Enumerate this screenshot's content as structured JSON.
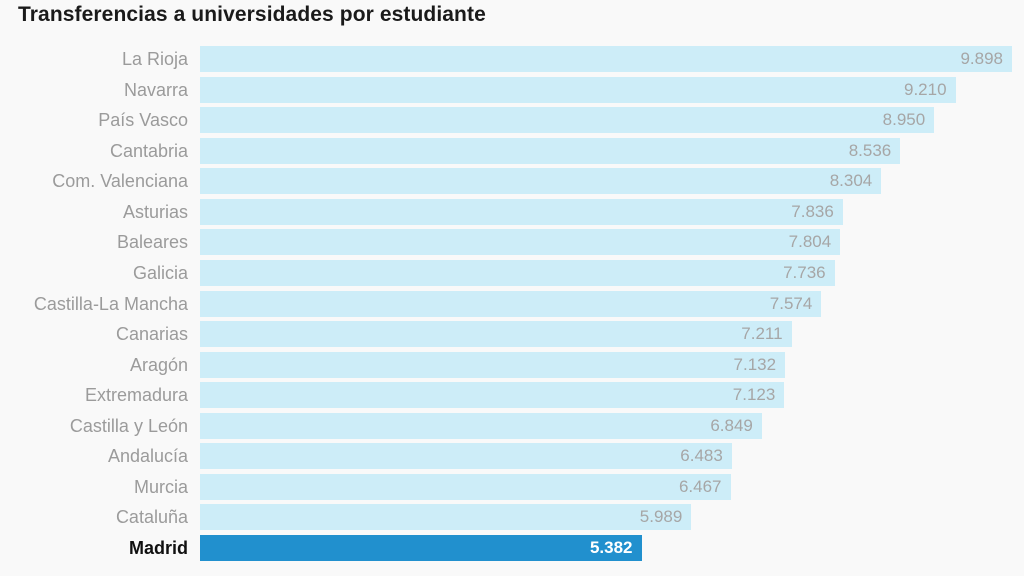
{
  "title": "Transferencias a universidades por estudiante",
  "colors": {
    "background": "#f9f9f9",
    "title": "#1a1a1a",
    "label": "#9b9b9b",
    "value": "#a6a6a6",
    "bar": "#cdedf8",
    "highlight_bar": "#2190ce",
    "highlight_label": "#111111",
    "highlight_value": "#ffffff"
  },
  "chart_data": {
    "type": "bar",
    "orientation": "horizontal",
    "title": "Transferencias a universidades por estudiante",
    "categories": [
      "La Rioja",
      "Navarra",
      "País Vasco",
      "Cantabria",
      "Com. Valenciana",
      "Asturias",
      "Baleares",
      "Galicia",
      "Castilla-La Mancha",
      "Canarias",
      "Aragón",
      "Extremadura",
      "Castilla y León",
      "Andalucía",
      "Murcia",
      "Cataluña",
      "Madrid"
    ],
    "values": [
      9898,
      9210,
      8950,
      8536,
      8304,
      7836,
      7804,
      7736,
      7574,
      7211,
      7132,
      7123,
      6849,
      6483,
      6467,
      5989,
      5382
    ],
    "value_labels": [
      "9.898",
      "9.210",
      "8.950",
      "8.536",
      "8.304",
      "7.836",
      "7.804",
      "7.736",
      "7.574",
      "7.211",
      "7.132",
      "7.123",
      "6.849",
      "6.483",
      "6.467",
      "5.989",
      "5.382"
    ],
    "highlighted_category": "Madrid",
    "xlabel": "",
    "ylabel": "",
    "xlim": [
      0,
      9898
    ],
    "grid": false,
    "legend": false,
    "value_label_position": "inside-end"
  }
}
